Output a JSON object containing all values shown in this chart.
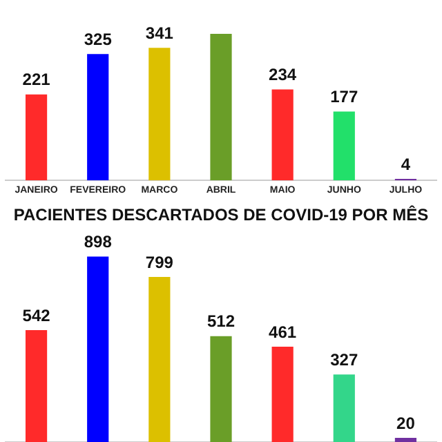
{
  "chart_data": [
    {
      "type": "bar",
      "categories": [
        "JANEIRO",
        "FEVEREIRO",
        "MARCO",
        "ABRIL",
        "MAIO",
        "JUNHO",
        "JULHO"
      ],
      "values": [
        221,
        325,
        341,
        377,
        234,
        177,
        4
      ],
      "value_labels": [
        "221",
        "325",
        "341",
        null,
        "234",
        "177",
        "4"
      ],
      "colors": [
        "#ff2a2a",
        "#0000ff",
        "#dcc000",
        "#6a9e28",
        "#ff2a2a",
        "#22e06a",
        "#7030a0"
      ],
      "grid": false,
      "legend": false,
      "tick_labels": "x"
    },
    {
      "type": "bar",
      "title": "PACIENTES DESCARTADOS DE COVID-19 POR MÊS",
      "categories": [
        null,
        null,
        null,
        null,
        null,
        null,
        null
      ],
      "values": [
        542,
        898,
        799,
        512,
        461,
        327,
        20
      ],
      "data_labels": true,
      "colors": [
        "#ff2a2a",
        "#0000ff",
        "#dcc000",
        "#6a9e28",
        "#ff2a2a",
        "#33d68a",
        "#7030a0"
      ],
      "grid": false,
      "legend": false,
      "tick_labels": false
    }
  ]
}
